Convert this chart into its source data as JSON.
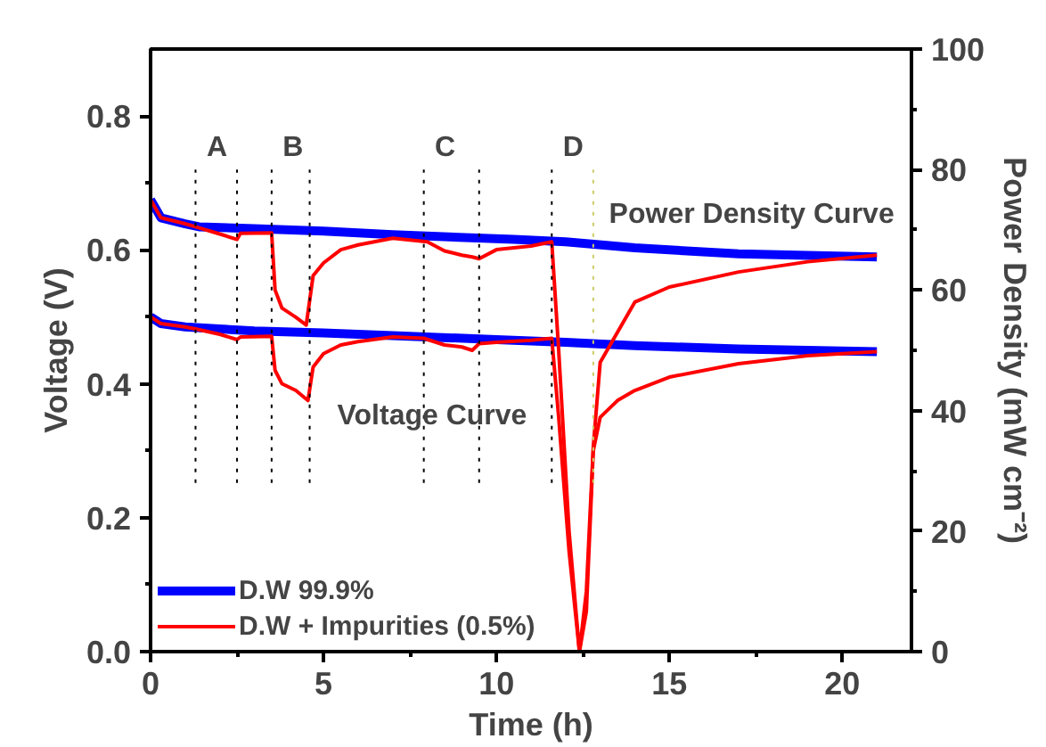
{
  "chart_data": {
    "type": "line",
    "xlabel": "Time (h)",
    "ylabel": "Voltage (V)",
    "y2label": "Power Density (mW cm⁻²)",
    "xlim": [
      0,
      22
    ],
    "ylim": [
      0,
      0.9
    ],
    "y2lim": [
      0,
      100
    ],
    "xticks": [
      0,
      5,
      10,
      15,
      20
    ],
    "yticks": [
      {
        "value": 0,
        "label": "0.0"
      },
      {
        "value": 0.2,
        "label": "0.2"
      },
      {
        "value": 0.4,
        "label": "0.4"
      },
      {
        "value": 0.6,
        "label": "0.6"
      },
      {
        "value": 0.8,
        "label": "0.8"
      }
    ],
    "y2ticks": [
      0,
      20,
      40,
      60,
      80,
      100
    ],
    "legend": "bottom left",
    "grid": false,
    "series": [
      {
        "name": "D.W 99.9%",
        "color": "#0000ff",
        "x": [
          0,
          0.3,
          1,
          2,
          3,
          5,
          7,
          10,
          12,
          14,
          17,
          21
        ],
        "values": [
          0.5,
          0.49,
          0.485,
          0.482,
          0.479,
          0.476,
          0.472,
          0.466,
          0.462,
          0.457,
          0.452,
          0.448
        ]
      },
      {
        "name": "D.W + Impurities (0.5%)",
        "color": "#ff0000",
        "x": [
          0,
          0.3,
          1,
          1.3,
          2,
          2.5,
          2.6,
          3.5,
          3.6,
          3.8,
          4.2,
          4.55,
          4.7,
          5,
          5.5,
          6,
          7,
          7.9,
          8.5,
          9,
          9.3,
          9.5,
          10,
          11,
          11.6,
          11.8,
          12.1,
          12.4,
          12.6,
          12.8,
          13,
          13.5,
          14,
          15,
          17,
          19,
          21
        ],
        "values": [
          0.5,
          0.49,
          0.485,
          0.482,
          0.474,
          0.466,
          0.47,
          0.471,
          0.42,
          0.4,
          0.39,
          0.375,
          0.425,
          0.445,
          0.458,
          0.463,
          0.47,
          0.468,
          0.458,
          0.455,
          0.45,
          0.46,
          0.462,
          0.465,
          0.468,
          0.35,
          0.15,
          0.0,
          0.06,
          0.3,
          0.35,
          0.375,
          0.39,
          0.41,
          0.43,
          0.442,
          0.448
        ]
      },
      {
        "color": "#0000ff",
        "axis": "y2",
        "x": [
          0,
          0.3,
          1,
          1.4,
          3,
          5,
          7,
          10.5,
          12,
          14,
          17,
          21
        ],
        "values": [
          75,
          72,
          71,
          70.5,
          70.2,
          69.8,
          69.2,
          68.4,
          68,
          67,
          66,
          65.5
        ]
      },
      {
        "color": "#ff0000",
        "axis": "y2",
        "x": [
          0,
          0.3,
          1,
          1.3,
          2,
          2.5,
          2.6,
          3.5,
          3.6,
          3.8,
          4.2,
          4.5,
          4.7,
          5,
          5.5,
          6,
          7,
          8,
          8.5,
          9,
          9.3,
          9.5,
          10,
          11,
          11.6,
          11.8,
          12.1,
          12.4,
          12.6,
          12.8,
          13,
          14,
          15,
          17,
          19,
          21
        ],
        "values": [
          75,
          72,
          71,
          70.5,
          69.3,
          68.4,
          69.4,
          69.5,
          60,
          57,
          55.5,
          54.2,
          62.4,
          64.5,
          66.7,
          67.5,
          68.6,
          68,
          66.5,
          65.8,
          65.5,
          65.2,
          66.7,
          67.3,
          68,
          50,
          20,
          0,
          10,
          34,
          48,
          58,
          60.5,
          63,
          64.7,
          65.8
        ]
      }
    ],
    "ref_lines": [
      {
        "axis": "x",
        "value": 1.3,
        "label": "A",
        "line_style": "dotted",
        "color": "#000000"
      },
      {
        "axis": "x",
        "value": 2.5,
        "line_style": "dotted",
        "color": "#000000"
      },
      {
        "axis": "x",
        "value": 3.5,
        "label": "B",
        "line_style": "dotted",
        "color": "#000000"
      },
      {
        "axis": "x",
        "value": 4.6,
        "line_style": "dotted",
        "color": "#000000"
      },
      {
        "axis": "x",
        "value": 7.9,
        "label": "C",
        "line_style": "dotted",
        "color": "#000000"
      },
      {
        "axis": "x",
        "value": 9.5,
        "line_style": "dotted",
        "color": "#000000"
      },
      {
        "axis": "x",
        "value": 11.6,
        "label": "D",
        "line_style": "dotted",
        "color": "#000000"
      },
      {
        "axis": "x",
        "value": 12.8,
        "line_style": "dotted",
        "color": "#cccc66"
      }
    ],
    "annotations": [
      "Power Density Curve",
      "Voltage Curve"
    ]
  }
}
